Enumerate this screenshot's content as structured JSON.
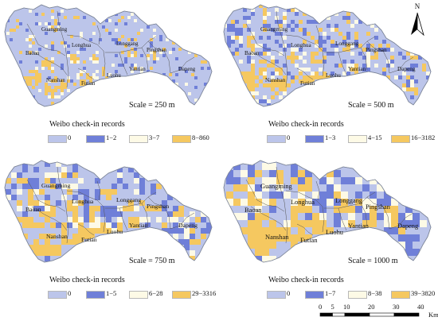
{
  "maps": [
    {
      "scale": "Scale = 250 m",
      "legend_title": "Weibo check-in records",
      "legend": [
        {
          "label": "0",
          "color": "#bcc5ea"
        },
        {
          "label": "1−2",
          "color": "#6f7fd8"
        },
        {
          "label": "3−7",
          "color": "#fdfae6"
        },
        {
          "label": "8−860",
          "color": "#f5c860"
        }
      ]
    },
    {
      "scale": "Scale = 500 m",
      "legend_title": "Weibo check-in records",
      "legend": [
        {
          "label": "0",
          "color": "#bcc5ea"
        },
        {
          "label": "1−3",
          "color": "#6f7fd8"
        },
        {
          "label": "4−15",
          "color": "#fdfae6"
        },
        {
          "label": "16−3182",
          "color": "#f5c860"
        }
      ]
    },
    {
      "scale": "Scale = 750 m",
      "legend_title": "Weibo check-in records",
      "legend": [
        {
          "label": "0",
          "color": "#bcc5ea"
        },
        {
          "label": "1−5",
          "color": "#6f7fd8"
        },
        {
          "label": "6−28",
          "color": "#fdfae6"
        },
        {
          "label": "29−3316",
          "color": "#f5c860"
        }
      ]
    },
    {
      "scale": "Scale = 1000 m",
      "legend_title": "Weibo check-in records",
      "legend": [
        {
          "label": "0",
          "color": "#bcc5ea"
        },
        {
          "label": "1−7",
          "color": "#6f7fd8"
        },
        {
          "label": "8−38",
          "color": "#fdfae6"
        },
        {
          "label": "39−3820",
          "color": "#f5c860"
        }
      ]
    }
  ],
  "districts": [
    "Guangming",
    "Longhua",
    "Baoan",
    "Longgang",
    "Pingshan",
    "Nanshan",
    "Futian",
    "Luohu",
    "Yantian",
    "Dapeng"
  ],
  "north_arrow": "N",
  "scalebar": {
    "ticks": [
      "0",
      "5",
      "10",
      "20",
      "30",
      "40"
    ],
    "tick_values_km": [
      0,
      5,
      10,
      20,
      30,
      40
    ],
    "unit": "Km"
  },
  "colors": {
    "zero": "#bcc5ea",
    "low": "#6f7fd8",
    "mid": "#fdfae6",
    "high": "#f5c860",
    "outline": "#8a93a6"
  }
}
